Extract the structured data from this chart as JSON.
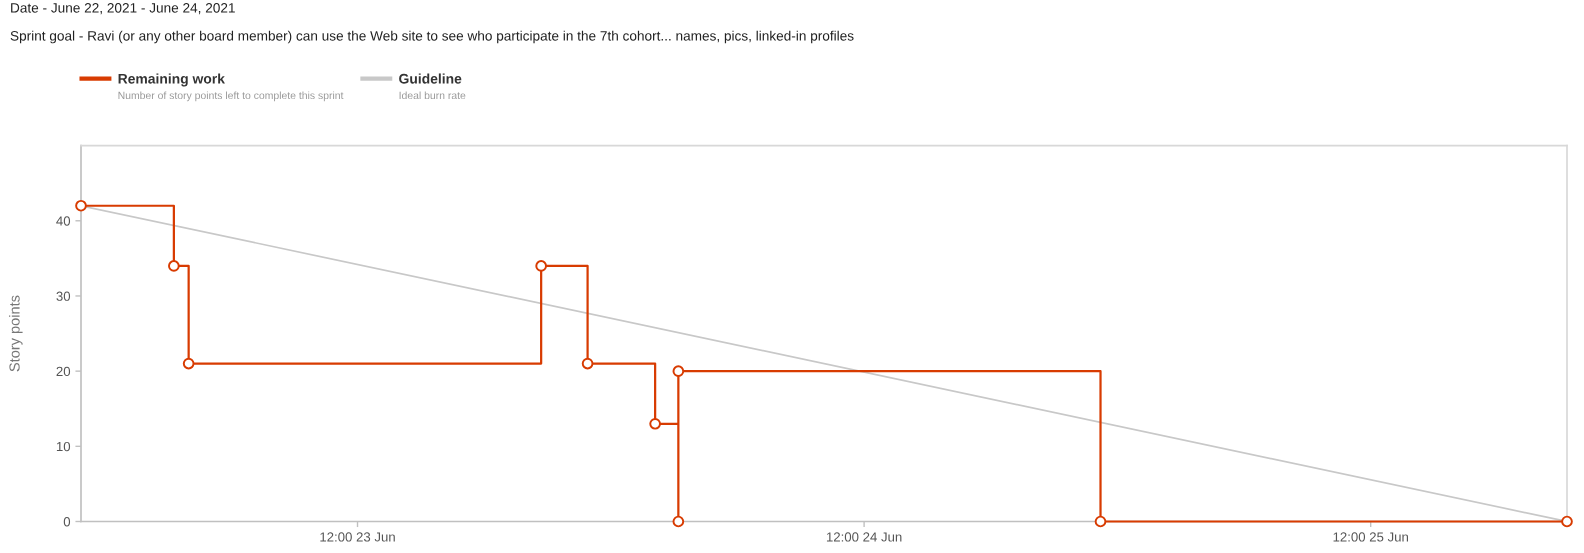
{
  "chart_data": {
    "type": "step",
    "title": "Date - June 22, 2021 - June 24, 2021",
    "subtitle": "Sprint goal - Ravi (or any other board member) can use the Web site to see who participate in the 7th cohort... names, pics, linked-in profiles",
    "ylabel": "Story points",
    "series": [
      {
        "name": "Remaining work",
        "color": "#d83b01",
        "marker": "circle",
        "x": [
          "2021-06-22T22:54",
          "2021-06-23T03:18",
          "2021-06-23T04:00",
          "2021-06-23T20:42",
          "2021-06-23T22:54",
          "2021-06-24T02:06",
          "2021-06-24T03:12",
          "2021-06-24T03:12",
          "2021-06-24T23:12",
          "2021-06-25T21:18"
        ],
        "values": [
          42,
          34,
          21,
          34,
          21,
          13,
          0,
          20,
          0,
          0
        ]
      },
      {
        "name": "Guideline",
        "type": "line",
        "color": "#c8c8c8",
        "marker": "none",
        "x": [
          "2021-06-22T22:54",
          "2021-06-25T21:18"
        ],
        "values": [
          42,
          0
        ]
      }
    ],
    "xlim": [
      "2021-06-22T22:54",
      "2021-06-25T21:18"
    ],
    "xticks": [
      {
        "value": "2021-06-23T12:00",
        "label": "12:00 23 Jun"
      },
      {
        "value": "2021-06-24T12:00",
        "label": "12:00 24 Jun"
      },
      {
        "value": "2021-06-25T12:00",
        "label": "12:00 25 Jun"
      }
    ],
    "ylim": [
      0,
      50
    ],
    "yticks": [
      0,
      10,
      20,
      30,
      40
    ],
    "grid": false,
    "legend": "top left",
    "annotations": [
      "Number of story points left to complete this sprint",
      "Ideal burn rate"
    ]
  }
}
